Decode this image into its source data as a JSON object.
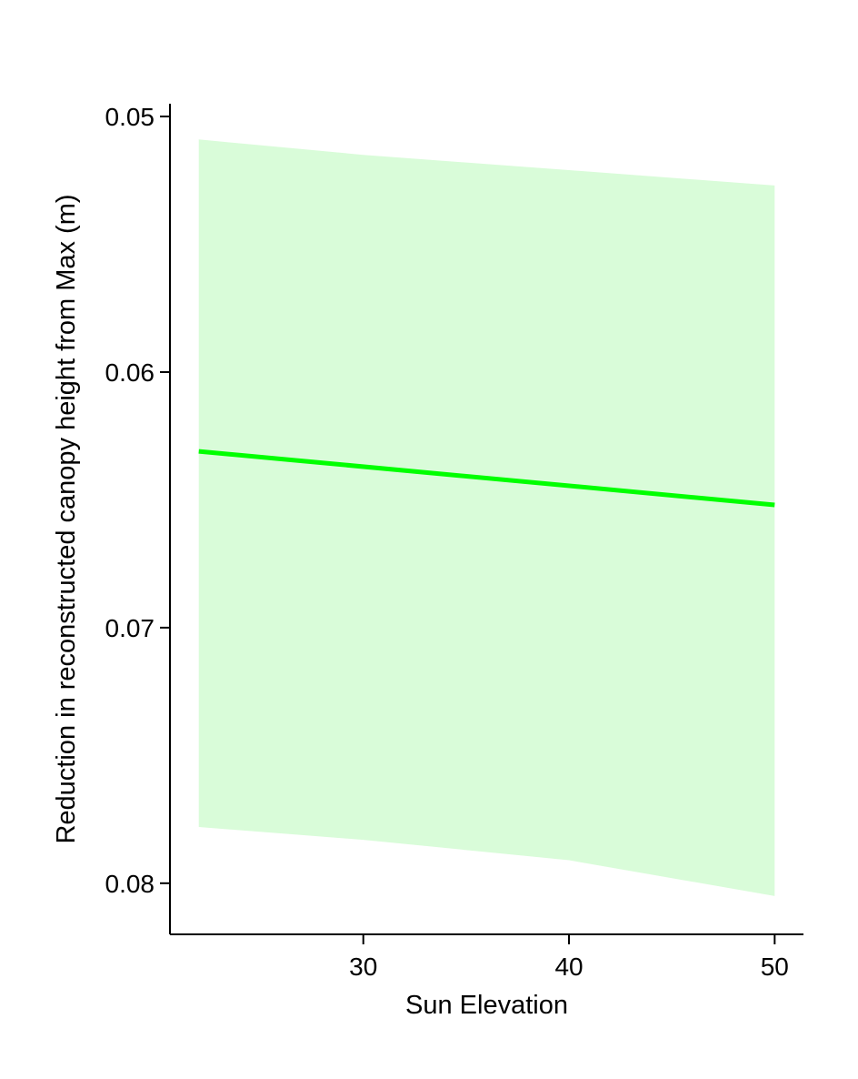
{
  "chart_data": {
    "type": "line",
    "title": "",
    "xlabel": "Sun Elevation",
    "ylabel": "Reduction in reconstructed canopy height from Max (m)",
    "xlim": [
      20.6,
      51.4
    ],
    "ylim": [
      0.0495,
      0.082
    ],
    "y_reversed": true,
    "x_ticks": [
      30,
      40,
      50
    ],
    "x_tick_labels": [
      "30",
      "40",
      "50"
    ],
    "y_ticks": [
      0.05,
      0.06,
      0.07,
      0.08
    ],
    "y_tick_labels": [
      "0.05",
      "0.06",
      "0.07",
      "0.08"
    ],
    "grid": false,
    "legend": "none",
    "series": [
      {
        "x": [
          22,
          50
        ],
        "y": [
          0.0631,
          0.0652
        ],
        "band_x": [
          22,
          30,
          40,
          50
        ],
        "band_lower": [
          0.0509,
          0.0515,
          0.0521,
          0.0527
        ],
        "band_upper": [
          0.0778,
          0.0783,
          0.0791,
          0.0805
        ],
        "line_color": "#00ff00",
        "band_color": "#d9fcd9"
      }
    ]
  }
}
